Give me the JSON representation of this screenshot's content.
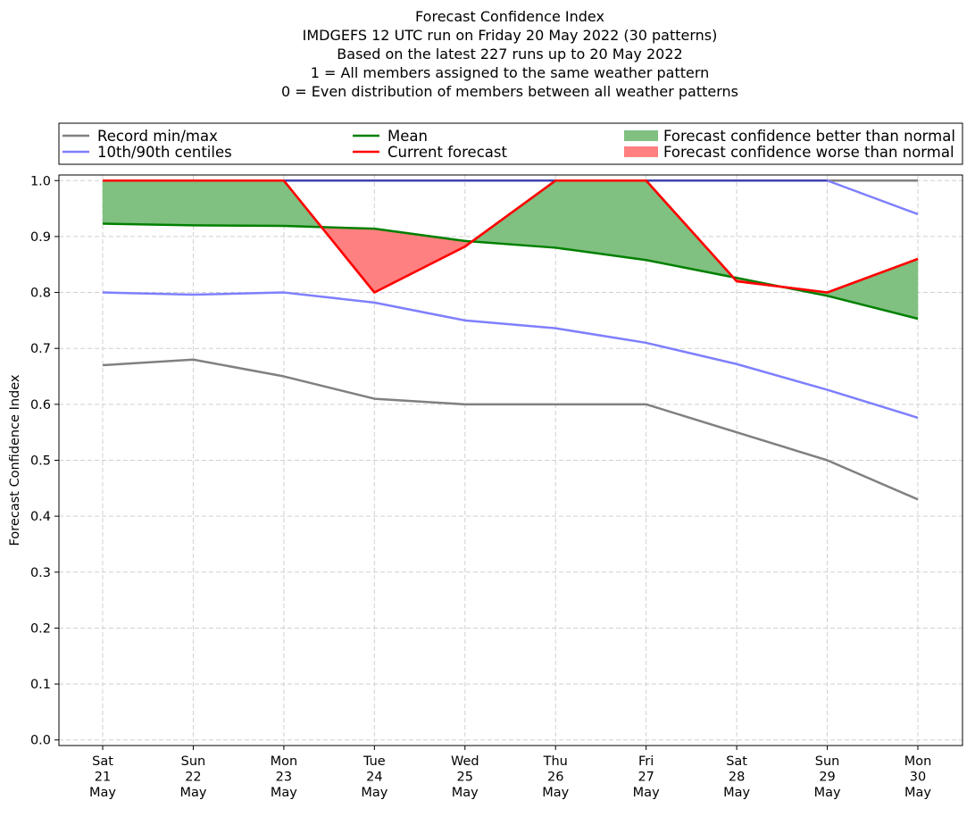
{
  "chart_data": {
    "type": "line",
    "title_lines": [
      "Forecast Confidence Index",
      "IMDGEFS 12 UTC run on Friday 20 May 2022 (30 patterns)",
      "Based on the latest 227 runs up to 20 May 2022",
      "1 = All members assigned to the same weather pattern",
      "0 = Even distribution of members between all weather patterns"
    ],
    "ylabel": "Forecast Confidence Index",
    "xlabel": "",
    "ylim": [
      -0.01,
      1.01
    ],
    "yticks": [
      "0.0",
      "0.1",
      "0.2",
      "0.3",
      "0.4",
      "0.5",
      "0.6",
      "0.7",
      "0.8",
      "0.9",
      "1.0"
    ],
    "categories": [
      [
        "Sat",
        "21",
        "May"
      ],
      [
        "Sun",
        "22",
        "May"
      ],
      [
        "Mon",
        "23",
        "May"
      ],
      [
        "Tue",
        "24",
        "May"
      ],
      [
        "Wed",
        "25",
        "May"
      ],
      [
        "Thu",
        "26",
        "May"
      ],
      [
        "Fri",
        "27",
        "May"
      ],
      [
        "Sat",
        "28",
        "May"
      ],
      [
        "Sun",
        "29",
        "May"
      ],
      [
        "Mon",
        "30",
        "May"
      ]
    ],
    "grid": true,
    "legend": {
      "placement": "top",
      "entries": [
        {
          "label": "Record min/max",
          "kind": "line",
          "color": "#808080"
        },
        {
          "label": "10th/90th centiles",
          "kind": "line",
          "color": "#7f7fff"
        },
        {
          "label": "Mean",
          "kind": "line",
          "color": "#008000"
        },
        {
          "label": "Current forecast",
          "kind": "line",
          "color": "#ff0000"
        },
        {
          "label": "Forecast confidence better than normal",
          "kind": "patch",
          "color": "#80c080"
        },
        {
          "label": "Forecast confidence worse than normal",
          "kind": "patch",
          "color": "#ff8080"
        }
      ]
    },
    "series": [
      {
        "name": "Record min",
        "color": "#808080",
        "values": [
          0.67,
          0.68,
          0.65,
          0.61,
          0.6,
          0.6,
          0.6,
          0.55,
          0.5,
          0.43
        ]
      },
      {
        "name": "Record max",
        "color": "#808080",
        "values": [
          1.0,
          1.0,
          1.0,
          1.0,
          1.0,
          1.0,
          1.0,
          1.0,
          1.0,
          1.0
        ]
      },
      {
        "name": "10th centile",
        "color": "#7f7fff",
        "values": [
          0.8,
          0.796,
          0.8,
          0.782,
          0.75,
          0.736,
          0.71,
          0.672,
          0.626,
          0.576
        ]
      },
      {
        "name": "90th centile",
        "color": "#7f7fff",
        "values": [
          1.0,
          1.0,
          1.0,
          1.0,
          1.0,
          1.0,
          1.0,
          1.0,
          1.0,
          0.94
        ]
      },
      {
        "name": "Mean",
        "color": "#008000",
        "values": [
          0.923,
          0.92,
          0.919,
          0.914,
          0.892,
          0.88,
          0.858,
          0.826,
          0.794,
          0.753
        ]
      },
      {
        "name": "Current forecast",
        "color": "#ff0000",
        "values": [
          1.0,
          1.0,
          1.0,
          0.8,
          0.882,
          1.0,
          1.0,
          0.82,
          0.8,
          0.86
        ]
      }
    ],
    "fill_colors": {
      "better": "#80c080",
      "worse": "#ff8080"
    }
  }
}
